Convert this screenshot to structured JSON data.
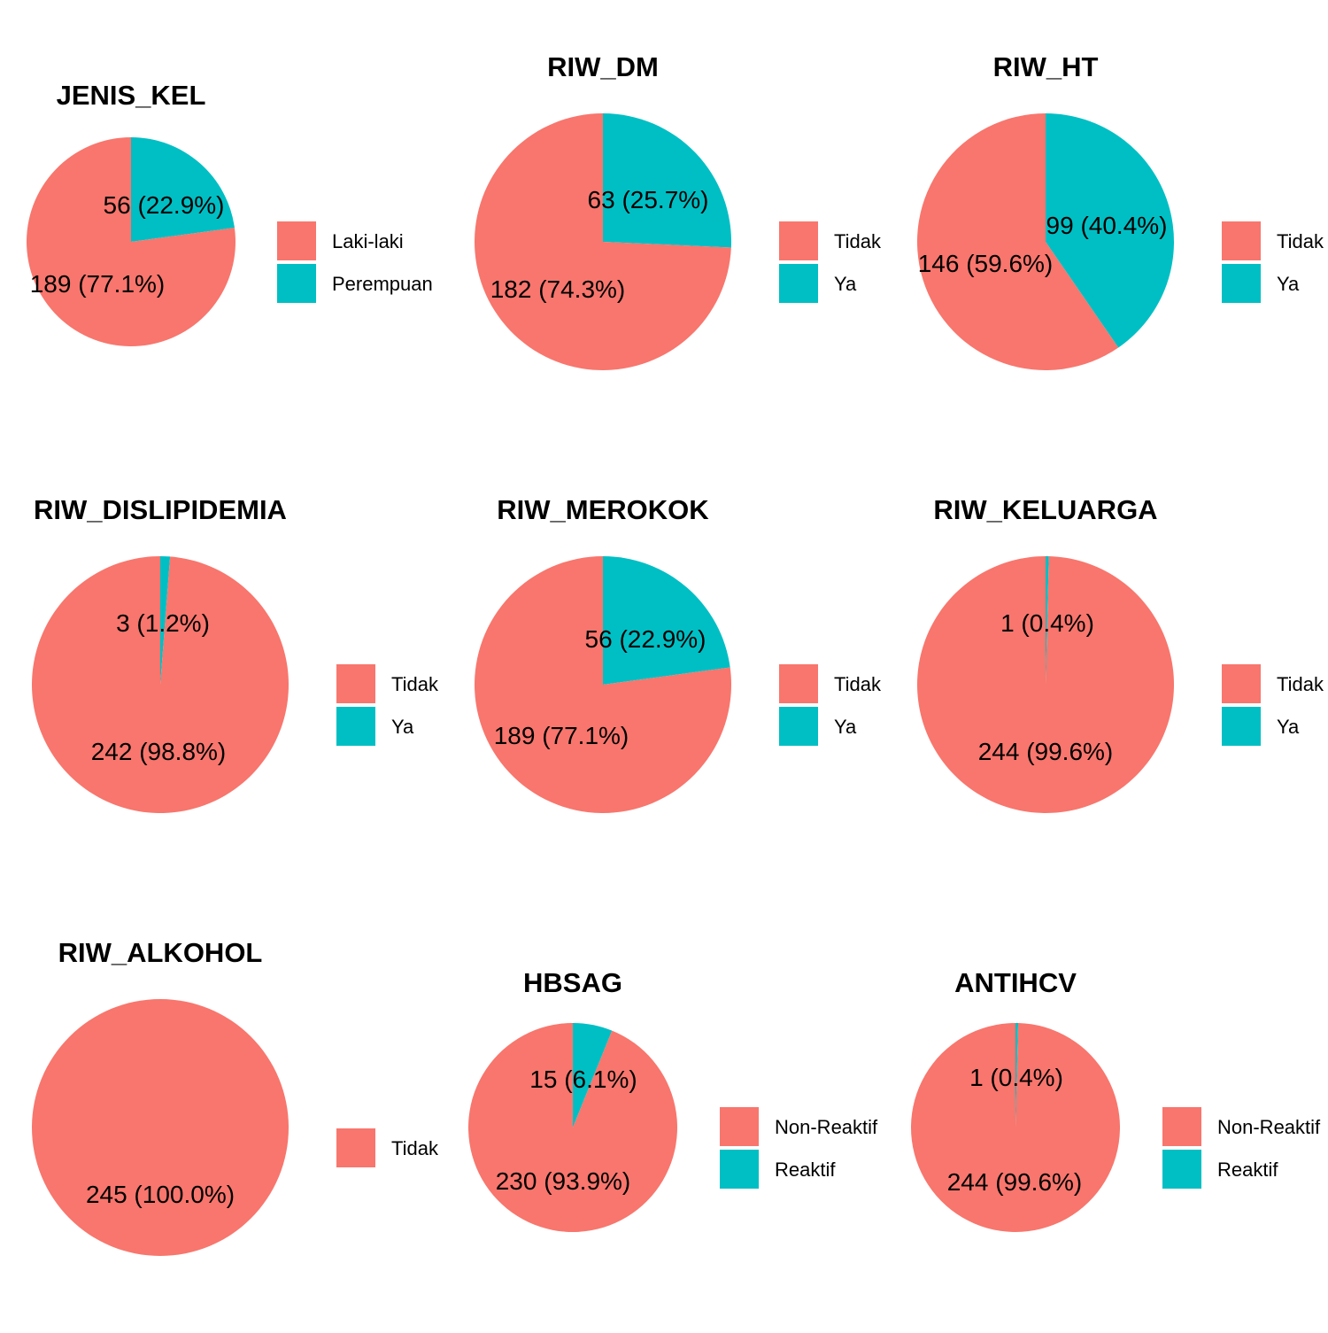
{
  "colors": {
    "first": "#F8766D",
    "second": "#00BFC4"
  },
  "chart_data": [
    {
      "type": "pie",
      "title": "JENIS_KEL",
      "categories": [
        "Laki-laki",
        "Perempuan"
      ],
      "values": [
        189,
        56
      ],
      "labels": [
        "189 (77.1%)",
        "56 (22.9%)"
      ],
      "legend": "right"
    },
    {
      "type": "pie",
      "title": "RIW_DM",
      "categories": [
        "Tidak",
        "Ya"
      ],
      "values": [
        182,
        63
      ],
      "labels": [
        "182 (74.3%)",
        "63 (25.7%)"
      ],
      "legend": "right"
    },
    {
      "type": "pie",
      "title": "RIW_HT",
      "categories": [
        "Tidak",
        "Ya"
      ],
      "values": [
        146,
        99
      ],
      "labels": [
        "146 (59.6%)",
        "99 (40.4%)"
      ],
      "legend": "right"
    },
    {
      "type": "pie",
      "title": "RIW_DISLIPIDEMIA",
      "categories": [
        "Tidak",
        "Ya"
      ],
      "values": [
        242,
        3
      ],
      "labels": [
        "242 (98.8%)",
        "3 (1.2%)"
      ],
      "legend": "right"
    },
    {
      "type": "pie",
      "title": "RIW_MEROKOK",
      "categories": [
        "Tidak",
        "Ya"
      ],
      "values": [
        189,
        56
      ],
      "labels": [
        "189 (77.1%)",
        "56 (22.9%)"
      ],
      "legend": "right"
    },
    {
      "type": "pie",
      "title": "RIW_KELUARGA",
      "categories": [
        "Tidak",
        "Ya"
      ],
      "values": [
        244,
        1
      ],
      "labels": [
        "244 (99.6%)",
        "1 (0.4%)"
      ],
      "legend": "right"
    },
    {
      "type": "pie",
      "title": "RIW_ALKOHOL",
      "categories": [
        "Tidak"
      ],
      "values": [
        245
      ],
      "labels": [
        "245 (100.0%)"
      ],
      "legend": "right"
    },
    {
      "type": "pie",
      "title": "HBSAG",
      "categories": [
        "Non-Reaktif",
        "Reaktif"
      ],
      "values": [
        230,
        15
      ],
      "labels": [
        "230 (93.9%)",
        "15 (6.1%)"
      ],
      "legend": "right"
    },
    {
      "type": "pie",
      "title": "ANTIHCV",
      "categories": [
        "Non-Reaktif",
        "Reaktif"
      ],
      "values": [
        244,
        1
      ],
      "labels": [
        "244 (99.6%)",
        "1 (0.4%)"
      ],
      "legend": "right"
    }
  ]
}
